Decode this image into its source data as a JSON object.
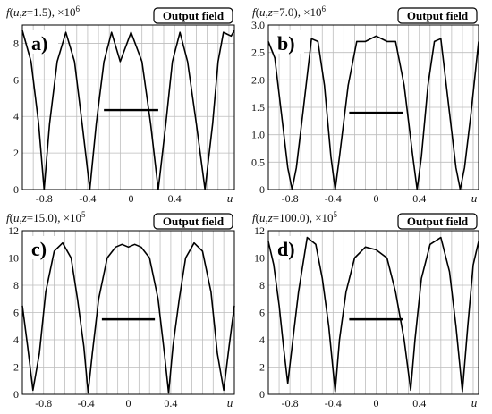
{
  "chart_data": [
    {
      "type": "line",
      "panel_label": "a)",
      "legend": "Output field",
      "ylabel": {
        "func": "f",
        "arg1": "u",
        "arg2": "z",
        "zval": "=1.5), ×10",
        "exp": "6"
      },
      "xlabel": "u",
      "xlim": [
        -1.0,
        0.95
      ],
      "ylim": [
        0,
        9
      ],
      "xticks": [
        -0.8,
        -0.4,
        0,
        0.4
      ],
      "xtick_labels": [
        "-0.8",
        "-0.4",
        "0",
        "0.4"
      ],
      "yticks": [
        0,
        2,
        4,
        6,
        8
      ],
      "ytick_labels": [
        "0",
        "2",
        "4",
        "6",
        "8"
      ],
      "grid": true,
      "series": [
        {
          "x": [
            -1.0,
            -0.92,
            -0.85,
            -0.8,
            -0.75,
            -0.68,
            -0.6,
            -0.52,
            -0.45,
            -0.38,
            -0.32,
            -0.25,
            -0.18,
            -0.1,
            0.0,
            0.1,
            0.18,
            0.25,
            0.32,
            0.38,
            0.45,
            0.52,
            0.6,
            0.68,
            0.75,
            0.8,
            0.85,
            0.92,
            0.95
          ],
          "y": [
            8.7,
            7.0,
            3.6,
            0.0,
            3.6,
            7.0,
            8.6,
            7.0,
            3.6,
            0.0,
            3.6,
            7.0,
            8.6,
            7.0,
            8.6,
            7.0,
            3.6,
            0.0,
            3.6,
            7.0,
            8.6,
            7.0,
            3.6,
            0.0,
            3.6,
            7.0,
            8.6,
            8.4,
            8.7
          ]
        }
      ],
      "segment": {
        "x": [
          -0.25,
          0.25
        ],
        "y": 4.35
      }
    },
    {
      "type": "line",
      "panel_label": "b)",
      "legend": "Output field",
      "ylabel": {
        "func": "f",
        "arg1": "u",
        "arg2": "z",
        "zval": "=7.0), ×10",
        "exp": "6"
      },
      "xlabel": "u",
      "xlim": [
        -1.0,
        0.95
      ],
      "ylim": [
        0,
        3.0
      ],
      "xticks": [
        -0.8,
        -0.4,
        0,
        0.4
      ],
      "xtick_labels": [
        "-0.8",
        "-0.4",
        "0",
        "0.4"
      ],
      "yticks": [
        0,
        0.5,
        1.0,
        1.5,
        2.0,
        2.5,
        3.0
      ],
      "ytick_labels": [
        "0",
        "0.5",
        "1.0",
        "1.5",
        "2.0",
        "2.5",
        "3.0"
      ],
      "grid": true,
      "series": [
        {
          "x": [
            -1.0,
            -0.94,
            -0.88,
            -0.82,
            -0.78,
            -0.74,
            -0.68,
            -0.6,
            -0.54,
            -0.48,
            -0.42,
            -0.38,
            -0.34,
            -0.26,
            -0.18,
            -0.1,
            0.0,
            0.1,
            0.18,
            0.26,
            0.34,
            0.38,
            0.42,
            0.48,
            0.54,
            0.6,
            0.68,
            0.74,
            0.78,
            0.82,
            0.88,
            0.95
          ],
          "y": [
            2.7,
            2.4,
            1.4,
            0.4,
            0.0,
            0.4,
            1.4,
            2.75,
            2.7,
            1.9,
            0.6,
            0.0,
            0.6,
            1.9,
            2.7,
            2.7,
            2.8,
            2.7,
            2.7,
            1.9,
            0.6,
            0.0,
            0.6,
            1.9,
            2.7,
            2.75,
            1.4,
            0.4,
            0.0,
            0.4,
            1.4,
            2.7
          ]
        }
      ],
      "segment": {
        "x": [
          -0.25,
          0.25
        ],
        "y": 1.4
      }
    },
    {
      "type": "line",
      "panel_label": "c)",
      "legend": "Output field",
      "ylabel": {
        "func": "f",
        "arg1": "u",
        "arg2": "z",
        "zval": "=15.0), ×10",
        "exp": "5"
      },
      "xlabel": "u",
      "xlim": [
        -1.0,
        1.0
      ],
      "ylim": [
        0,
        12
      ],
      "xticks": [
        -0.8,
        -0.4,
        0,
        0.4
      ],
      "xtick_labels": [
        "-0.8",
        "-0.4",
        "0",
        "0.4"
      ],
      "yticks": [
        0,
        2,
        4,
        6,
        8,
        10,
        12
      ],
      "ytick_labels": [
        "0",
        "2",
        "4",
        "6",
        "8",
        "10",
        "12"
      ],
      "grid": true,
      "series": [
        {
          "x": [
            -1.0,
            -0.95,
            -0.9,
            -0.84,
            -0.78,
            -0.7,
            -0.62,
            -0.54,
            -0.48,
            -0.42,
            -0.38,
            -0.34,
            -0.28,
            -0.2,
            -0.12,
            -0.06,
            0.0,
            0.06,
            0.12,
            0.2,
            0.28,
            0.34,
            0.38,
            0.42,
            0.48,
            0.54,
            0.62,
            0.7,
            0.78,
            0.84,
            0.9,
            0.95,
            1.0
          ],
          "y": [
            6.5,
            3.5,
            0.3,
            3.0,
            7.5,
            10.5,
            11.1,
            10.0,
            7.0,
            3.5,
            0.1,
            3.0,
            7.0,
            10.0,
            10.8,
            11.0,
            10.8,
            11.0,
            10.8,
            10.0,
            7.0,
            3.0,
            0.1,
            3.5,
            7.0,
            10.0,
            11.1,
            10.5,
            7.5,
            3.0,
            0.3,
            3.5,
            6.5
          ]
        }
      ],
      "segment": {
        "x": [
          -0.25,
          0.25
        ],
        "y": 5.5
      }
    },
    {
      "type": "line",
      "panel_label": "d)",
      "legend": "Output field",
      "ylabel": {
        "func": "f",
        "arg1": "u",
        "arg2": "z",
        "zval": "=100.0), ×10",
        "exp": "5"
      },
      "xlabel": "u",
      "xlim": [
        -1.0,
        0.95
      ],
      "ylim": [
        0,
        12
      ],
      "xticks": [
        -0.8,
        -0.4,
        0,
        0.4
      ],
      "xtick_labels": [
        "-0.8",
        "-0.4",
        "0",
        "0.4"
      ],
      "yticks": [
        0,
        2,
        4,
        6,
        8,
        10,
        12
      ],
      "ytick_labels": [
        "0",
        "2",
        "4",
        "6",
        "8",
        "10",
        "12"
      ],
      "grid": true,
      "series": [
        {
          "x": [
            -1.0,
            -0.95,
            -0.9,
            -0.86,
            -0.82,
            -0.78,
            -0.72,
            -0.64,
            -0.56,
            -0.5,
            -0.44,
            -0.38,
            -0.34,
            -0.28,
            -0.2,
            -0.1,
            0.0,
            0.1,
            0.18,
            0.26,
            0.32,
            0.36,
            0.42,
            0.5,
            0.6,
            0.68,
            0.74,
            0.8,
            0.85,
            0.9,
            0.95
          ],
          "y": [
            11.2,
            9.5,
            6.5,
            3.5,
            0.8,
            3.5,
            7.5,
            11.5,
            11.0,
            8.5,
            5.0,
            0.2,
            4.0,
            7.5,
            10.0,
            10.8,
            10.6,
            10.0,
            7.5,
            4.0,
            0.3,
            4.0,
            8.5,
            11.0,
            11.5,
            9.0,
            5.0,
            0.2,
            5.0,
            9.5,
            11.2
          ]
        }
      ],
      "segment": {
        "x": [
          -0.25,
          0.25
        ],
        "y": 5.5
      }
    }
  ]
}
